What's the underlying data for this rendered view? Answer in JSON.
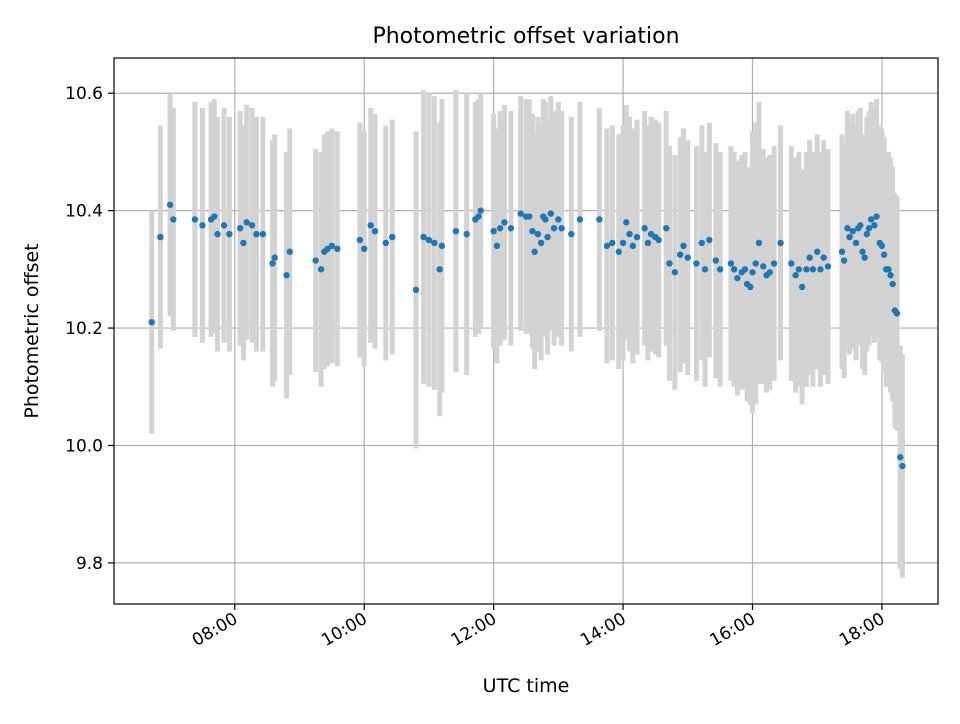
{
  "chart_data": {
    "type": "scatter",
    "title": "Photometric offset variation",
    "xlabel": "UTC time",
    "ylabel": "Photometric offset",
    "x_unit": "time of day (UTC)",
    "xlim": [
      "06:08",
      "18:52"
    ],
    "ylim": [
      9.73,
      10.66
    ],
    "x_ticks": [
      "08:00",
      "10:00",
      "12:00",
      "14:00",
      "16:00",
      "18:00"
    ],
    "y_ticks": [
      9.8,
      10.0,
      10.2,
      10.4,
      10.6
    ],
    "grid": true,
    "colors": {
      "point": "#1f77b4",
      "errorbar": "#d3d3d3",
      "grid": "#b0b0b0"
    },
    "points": [
      {
        "t": "06:43",
        "y": 10.21,
        "err": 0.19
      },
      {
        "t": "06:51",
        "y": 10.355,
        "err": 0.19
      },
      {
        "t": "07:00",
        "y": 10.41,
        "err": 0.19
      },
      {
        "t": "07:03",
        "y": 10.385,
        "err": 0.19
      },
      {
        "t": "07:23",
        "y": 10.385,
        "err": 0.2
      },
      {
        "t": "07:30",
        "y": 10.375,
        "err": 0.2
      },
      {
        "t": "07:38",
        "y": 10.385,
        "err": 0.2
      },
      {
        "t": "07:41",
        "y": 10.39,
        "err": 0.2
      },
      {
        "t": "07:44",
        "y": 10.36,
        "err": 0.2
      },
      {
        "t": "07:50",
        "y": 10.375,
        "err": 0.2
      },
      {
        "t": "07:55",
        "y": 10.36,
        "err": 0.2
      },
      {
        "t": "08:05",
        "y": 10.37,
        "err": 0.2
      },
      {
        "t": "08:08",
        "y": 10.345,
        "err": 0.2
      },
      {
        "t": "08:11",
        "y": 10.38,
        "err": 0.2
      },
      {
        "t": "08:16",
        "y": 10.375,
        "err": 0.2
      },
      {
        "t": "08:20",
        "y": 10.36,
        "err": 0.2
      },
      {
        "t": "08:26",
        "y": 10.36,
        "err": 0.2
      },
      {
        "t": "08:35",
        "y": 10.31,
        "err": 0.21
      },
      {
        "t": "08:37",
        "y": 10.32,
        "err": 0.21
      },
      {
        "t": "08:48",
        "y": 10.29,
        "err": 0.21
      },
      {
        "t": "08:51",
        "y": 10.33,
        "err": 0.21
      },
      {
        "t": "09:15",
        "y": 10.315,
        "err": 0.19
      },
      {
        "t": "09:20",
        "y": 10.3,
        "err": 0.2
      },
      {
        "t": "09:23",
        "y": 10.33,
        "err": 0.2
      },
      {
        "t": "09:26",
        "y": 10.335,
        "err": 0.2
      },
      {
        "t": "09:30",
        "y": 10.34,
        "err": 0.2
      },
      {
        "t": "09:35",
        "y": 10.335,
        "err": 0.2
      },
      {
        "t": "09:56",
        "y": 10.35,
        "err": 0.2
      },
      {
        "t": "10:00",
        "y": 10.335,
        "err": 0.2
      },
      {
        "t": "10:06",
        "y": 10.375,
        "err": 0.2
      },
      {
        "t": "10:10",
        "y": 10.365,
        "err": 0.2
      },
      {
        "t": "10:20",
        "y": 10.345,
        "err": 0.2
      },
      {
        "t": "10:26",
        "y": 10.355,
        "err": 0.2
      },
      {
        "t": "10:48",
        "y": 10.265,
        "err": 0.27
      },
      {
        "t": "10:55",
        "y": 10.355,
        "err": 0.25
      },
      {
        "t": "11:00",
        "y": 10.35,
        "err": 0.25
      },
      {
        "t": "11:05",
        "y": 10.345,
        "err": 0.25
      },
      {
        "t": "11:10",
        "y": 10.3,
        "err": 0.25
      },
      {
        "t": "11:12",
        "y": 10.34,
        "err": 0.25
      },
      {
        "t": "11:25",
        "y": 10.365,
        "err": 0.24
      },
      {
        "t": "11:35",
        "y": 10.36,
        "err": 0.24
      },
      {
        "t": "11:43",
        "y": 10.385,
        "err": 0.2
      },
      {
        "t": "11:46",
        "y": 10.39,
        "err": 0.2
      },
      {
        "t": "11:48",
        "y": 10.4,
        "err": 0.2
      },
      {
        "t": "12:00",
        "y": 10.365,
        "err": 0.2
      },
      {
        "t": "12:03",
        "y": 10.34,
        "err": 0.2
      },
      {
        "t": "12:06",
        "y": 10.37,
        "err": 0.2
      },
      {
        "t": "12:10",
        "y": 10.38,
        "err": 0.2
      },
      {
        "t": "12:16",
        "y": 10.37,
        "err": 0.2
      },
      {
        "t": "12:25",
        "y": 10.395,
        "err": 0.2
      },
      {
        "t": "12:30",
        "y": 10.39,
        "err": 0.2
      },
      {
        "t": "12:33",
        "y": 10.39,
        "err": 0.2
      },
      {
        "t": "12:36",
        "y": 10.365,
        "err": 0.2
      },
      {
        "t": "12:38",
        "y": 10.33,
        "err": 0.2
      },
      {
        "t": "12:41",
        "y": 10.36,
        "err": 0.2
      },
      {
        "t": "12:44",
        "y": 10.345,
        "err": 0.2
      },
      {
        "t": "12:46",
        "y": 10.39,
        "err": 0.2
      },
      {
        "t": "12:48",
        "y": 10.385,
        "err": 0.2
      },
      {
        "t": "12:50",
        "y": 10.355,
        "err": 0.2
      },
      {
        "t": "12:53",
        "y": 10.395,
        "err": 0.2
      },
      {
        "t": "12:56",
        "y": 10.37,
        "err": 0.2
      },
      {
        "t": "13:00",
        "y": 10.385,
        "err": 0.2
      },
      {
        "t": "13:03",
        "y": 10.37,
        "err": 0.2
      },
      {
        "t": "13:12",
        "y": 10.36,
        "err": 0.2
      },
      {
        "t": "13:20",
        "y": 10.385,
        "err": 0.2
      },
      {
        "t": "13:38",
        "y": 10.385,
        "err": 0.19
      },
      {
        "t": "13:45",
        "y": 10.34,
        "err": 0.2
      },
      {
        "t": "13:50",
        "y": 10.345,
        "err": 0.2
      },
      {
        "t": "13:56",
        "y": 10.33,
        "err": 0.2
      },
      {
        "t": "14:00",
        "y": 10.345,
        "err": 0.2
      },
      {
        "t": "14:03",
        "y": 10.38,
        "err": 0.2
      },
      {
        "t": "14:06",
        "y": 10.36,
        "err": 0.2
      },
      {
        "t": "14:09",
        "y": 10.34,
        "err": 0.2
      },
      {
        "t": "14:13",
        "y": 10.355,
        "err": 0.2
      },
      {
        "t": "14:20",
        "y": 10.37,
        "err": 0.2
      },
      {
        "t": "14:23",
        "y": 10.345,
        "err": 0.2
      },
      {
        "t": "14:26",
        "y": 10.36,
        "err": 0.2
      },
      {
        "t": "14:30",
        "y": 10.355,
        "err": 0.2
      },
      {
        "t": "14:33",
        "y": 10.35,
        "err": 0.2
      },
      {
        "t": "14:40",
        "y": 10.37,
        "err": 0.2
      },
      {
        "t": "14:43",
        "y": 10.31,
        "err": 0.2
      },
      {
        "t": "14:48",
        "y": 10.295,
        "err": 0.2
      },
      {
        "t": "14:53",
        "y": 10.325,
        "err": 0.2
      },
      {
        "t": "14:56",
        "y": 10.34,
        "err": 0.2
      },
      {
        "t": "15:00",
        "y": 10.32,
        "err": 0.2
      },
      {
        "t": "15:08",
        "y": 10.31,
        "err": 0.2
      },
      {
        "t": "15:13",
        "y": 10.345,
        "err": 0.2
      },
      {
        "t": "15:16",
        "y": 10.3,
        "err": 0.2
      },
      {
        "t": "15:20",
        "y": 10.35,
        "err": 0.2
      },
      {
        "t": "15:26",
        "y": 10.315,
        "err": 0.2
      },
      {
        "t": "15:30",
        "y": 10.3,
        "err": 0.2
      },
      {
        "t": "15:40",
        "y": 10.31,
        "err": 0.2
      },
      {
        "t": "15:43",
        "y": 10.3,
        "err": 0.2
      },
      {
        "t": "15:46",
        "y": 10.285,
        "err": 0.2
      },
      {
        "t": "15:50",
        "y": 10.295,
        "err": 0.2
      },
      {
        "t": "15:53",
        "y": 10.3,
        "err": 0.2
      },
      {
        "t": "15:55",
        "y": 10.275,
        "err": 0.2
      },
      {
        "t": "15:58",
        "y": 10.27,
        "err": 0.2
      },
      {
        "t": "16:00",
        "y": 10.295,
        "err": 0.24
      },
      {
        "t": "16:03",
        "y": 10.31,
        "err": 0.24
      },
      {
        "t": "16:06",
        "y": 10.345,
        "err": 0.24
      },
      {
        "t": "16:10",
        "y": 10.305,
        "err": 0.2
      },
      {
        "t": "16:13",
        "y": 10.29,
        "err": 0.2
      },
      {
        "t": "16:16",
        "y": 10.295,
        "err": 0.2
      },
      {
        "t": "16:20",
        "y": 10.31,
        "err": 0.2
      },
      {
        "t": "16:26",
        "y": 10.345,
        "err": 0.2
      },
      {
        "t": "16:36",
        "y": 10.31,
        "err": 0.2
      },
      {
        "t": "16:40",
        "y": 10.29,
        "err": 0.2
      },
      {
        "t": "16:43",
        "y": 10.3,
        "err": 0.2
      },
      {
        "t": "16:46",
        "y": 10.27,
        "err": 0.2
      },
      {
        "t": "16:50",
        "y": 10.3,
        "err": 0.2
      },
      {
        "t": "16:53",
        "y": 10.32,
        "err": 0.2
      },
      {
        "t": "16:56",
        "y": 10.3,
        "err": 0.2
      },
      {
        "t": "17:00",
        "y": 10.33,
        "err": 0.2
      },
      {
        "t": "17:03",
        "y": 10.3,
        "err": 0.2
      },
      {
        "t": "17:06",
        "y": 10.32,
        "err": 0.2
      },
      {
        "t": "17:10",
        "y": 10.305,
        "err": 0.2
      },
      {
        "t": "17:23",
        "y": 10.33,
        "err": 0.2
      },
      {
        "t": "17:25",
        "y": 10.315,
        "err": 0.2
      },
      {
        "t": "17:28",
        "y": 10.37,
        "err": 0.2
      },
      {
        "t": "17:30",
        "y": 10.355,
        "err": 0.2
      },
      {
        "t": "17:33",
        "y": 10.365,
        "err": 0.2
      },
      {
        "t": "17:36",
        "y": 10.345,
        "err": 0.2
      },
      {
        "t": "17:38",
        "y": 10.37,
        "err": 0.2
      },
      {
        "t": "17:40",
        "y": 10.375,
        "err": 0.2
      },
      {
        "t": "17:42",
        "y": 10.33,
        "err": 0.2
      },
      {
        "t": "17:44",
        "y": 10.32,
        "err": 0.2
      },
      {
        "t": "17:46",
        "y": 10.36,
        "err": 0.2
      },
      {
        "t": "17:48",
        "y": 10.37,
        "err": 0.2
      },
      {
        "t": "17:50",
        "y": 10.385,
        "err": 0.2
      },
      {
        "t": "17:53",
        "y": 10.375,
        "err": 0.2
      },
      {
        "t": "17:55",
        "y": 10.39,
        "err": 0.2
      },
      {
        "t": "17:58",
        "y": 10.345,
        "err": 0.2
      },
      {
        "t": "18:00",
        "y": 10.34,
        "err": 0.2
      },
      {
        "t": "18:02",
        "y": 10.325,
        "err": 0.2
      },
      {
        "t": "18:04",
        "y": 10.3,
        "err": 0.2
      },
      {
        "t": "18:06",
        "y": 10.3,
        "err": 0.2
      },
      {
        "t": "18:08",
        "y": 10.29,
        "err": 0.2
      },
      {
        "t": "18:10",
        "y": 10.275,
        "err": 0.2
      },
      {
        "t": "18:12",
        "y": 10.23,
        "err": 0.2
      },
      {
        "t": "18:14",
        "y": 10.225,
        "err": 0.2
      },
      {
        "t": "18:17",
        "y": 9.98,
        "err": 0.19
      },
      {
        "t": "18:19",
        "y": 9.965,
        "err": 0.19
      }
    ]
  }
}
